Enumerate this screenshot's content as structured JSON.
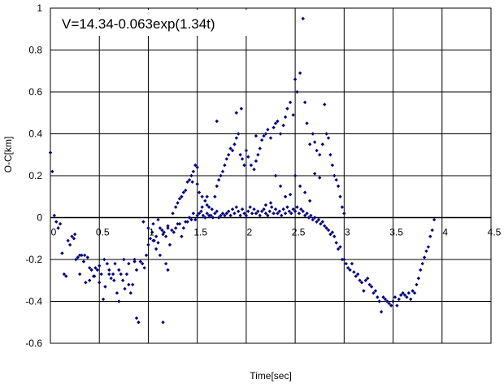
{
  "chart_data": {
    "type": "scatter",
    "annotation": "V=14.34-0.063exp(1.34t)",
    "xlabel": "Time[sec]",
    "ylabel": "O-C[km]",
    "xlim": [
      0,
      4.5
    ],
    "ylim": [
      -0.6,
      1.0
    ],
    "xticks": [
      0,
      0.5,
      1,
      1.5,
      2,
      2.5,
      3,
      3.5,
      4,
      4.5
    ],
    "xtick_labels": [
      "0",
      "0.5",
      "1",
      "1.5",
      "2",
      "2.5",
      "3",
      "3.5",
      "4",
      "4.5"
    ],
    "yticks": [
      -0.6,
      -0.4,
      -0.2,
      0,
      0.2,
      0.4,
      0.6,
      0.8,
      1
    ],
    "ytick_labels": [
      "-0.6",
      "-0.4",
      "-0.2",
      "0",
      "0.2",
      "0.4",
      "0.6",
      "0.8",
      "1"
    ],
    "grid": true,
    "marker_color": "#000080",
    "points": [
      [
        0.0,
        0.31
      ],
      [
        0.02,
        0.22
      ],
      [
        0.04,
        0.01
      ],
      [
        0.06,
        -0.02
      ],
      [
        0.08,
        -0.05
      ],
      [
        0.1,
        -0.03
      ],
      [
        0.12,
        -0.17
      ],
      [
        0.14,
        -0.27
      ],
      [
        0.16,
        -0.28
      ],
      [
        0.18,
        -0.11
      ],
      [
        0.2,
        -0.13
      ],
      [
        0.22,
        -0.09
      ],
      [
        0.24,
        -0.1
      ],
      [
        0.26,
        -0.2
      ],
      [
        0.28,
        -0.19
      ],
      [
        0.3,
        -0.18
      ],
      [
        0.32,
        -0.18
      ],
      [
        0.34,
        -0.21
      ],
      [
        0.36,
        -0.31
      ],
      [
        0.38,
        -0.19
      ],
      [
        0.4,
        -0.24
      ],
      [
        0.42,
        -0.25
      ],
      [
        0.44,
        -0.28
      ],
      [
        0.46,
        -0.24
      ],
      [
        0.48,
        -0.25
      ],
      [
        0.5,
        -0.31
      ],
      [
        0.52,
        -0.27
      ],
      [
        0.54,
        -0.39
      ],
      [
        0.56,
        -0.33
      ],
      [
        0.58,
        -0.22
      ],
      [
        0.6,
        -0.25
      ],
      [
        0.62,
        -0.29
      ],
      [
        0.64,
        -0.27
      ],
      [
        0.66,
        -0.22
      ],
      [
        0.68,
        -0.36
      ],
      [
        0.7,
        -0.4
      ],
      [
        0.72,
        -0.27
      ],
      [
        0.74,
        -0.3
      ],
      [
        0.76,
        -0.34
      ],
      [
        0.78,
        -0.27
      ],
      [
        0.8,
        -0.32
      ],
      [
        0.82,
        -0.36
      ],
      [
        0.84,
        -0.32
      ],
      [
        0.86,
        -0.21
      ],
      [
        0.88,
        -0.25
      ],
      [
        0.9,
        -0.5
      ],
      [
        0.92,
        -0.21
      ],
      [
        0.94,
        -0.22
      ],
      [
        0.96,
        -0.24
      ],
      [
        0.98,
        -0.18
      ],
      [
        1.0,
        -0.13
      ],
      [
        1.02,
        -0.1
      ],
      [
        1.04,
        -0.07
      ],
      [
        1.06,
        -0.11
      ],
      [
        1.08,
        -0.09
      ],
      [
        1.1,
        -0.12
      ],
      [
        1.12,
        -0.05
      ],
      [
        1.14,
        -0.06
      ],
      [
        1.16,
        -0.07
      ],
      [
        1.18,
        -0.09
      ],
      [
        1.2,
        -0.04
      ],
      [
        1.22,
        -0.13
      ],
      [
        1.24,
        -0.06
      ],
      [
        1.26,
        -0.07
      ],
      [
        1.28,
        -0.05
      ],
      [
        1.3,
        -0.03
      ],
      [
        1.32,
        -0.03
      ],
      [
        1.34,
        -0.09
      ],
      [
        1.36,
        -0.05
      ],
      [
        1.38,
        -0.02
      ],
      [
        1.4,
        -0.02
      ],
      [
        1.42,
        0.0
      ],
      [
        1.44,
        -0.01
      ],
      [
        1.46,
        0.02
      ],
      [
        1.48,
        -0.01
      ],
      [
        1.5,
        0.01
      ],
      [
        1.52,
        0.02
      ],
      [
        1.54,
        0.03
      ],
      [
        1.56,
        0.01
      ],
      [
        1.58,
        0.0
      ],
      [
        1.6,
        0.02
      ],
      [
        1.62,
        0.01
      ],
      [
        1.64,
        0.01
      ],
      [
        1.66,
        0.0
      ],
      [
        1.68,
        0.02
      ],
      [
        1.7,
        0.03
      ],
      [
        1.72,
        0.0
      ],
      [
        1.74,
        0.01
      ],
      [
        1.76,
        0.02
      ],
      [
        1.78,
        0.01
      ],
      [
        1.8,
        0.02
      ],
      [
        1.82,
        0.03
      ],
      [
        1.84,
        0.01
      ],
      [
        1.86,
        0.04
      ],
      [
        1.88,
        0.02
      ],
      [
        1.9,
        0.05
      ],
      [
        1.92,
        0.03
      ],
      [
        1.94,
        0.01
      ],
      [
        1.96,
        0.04
      ],
      [
        1.98,
        0.02
      ],
      [
        2.0,
        0.01
      ],
      [
        2.02,
        0.03
      ],
      [
        2.04,
        0.05
      ],
      [
        2.06,
        0.02
      ],
      [
        2.08,
        0.04
      ],
      [
        2.1,
        0.02
      ],
      [
        2.12,
        0.03
      ],
      [
        2.14,
        0.01
      ],
      [
        2.16,
        0.03
      ],
      [
        2.18,
        0.04
      ],
      [
        2.2,
        0.02
      ],
      [
        2.22,
        0.01
      ],
      [
        2.24,
        0.03
      ],
      [
        2.26,
        0.05
      ],
      [
        2.28,
        0.02
      ],
      [
        2.3,
        0.04
      ],
      [
        2.32,
        0.02
      ],
      [
        2.34,
        0.03
      ],
      [
        2.36,
        0.01
      ],
      [
        2.38,
        0.04
      ],
      [
        2.4,
        0.02
      ],
      [
        2.42,
        0.05
      ],
      [
        2.44,
        0.03
      ],
      [
        2.46,
        0.02
      ],
      [
        2.48,
        0.04
      ],
      [
        2.5,
        0.03
      ],
      [
        2.52,
        0.05
      ],
      [
        2.54,
        0.02
      ],
      [
        2.56,
        0.04
      ],
      [
        2.58,
        0.03
      ],
      [
        2.6,
        0.01
      ],
      [
        2.62,
        0.02
      ],
      [
        2.64,
        0.0
      ],
      [
        2.66,
        0.01
      ],
      [
        2.68,
        -0.01
      ],
      [
        2.7,
        0.0
      ],
      [
        2.72,
        -0.02
      ],
      [
        2.74,
        -0.01
      ],
      [
        2.76,
        -0.03
      ],
      [
        2.78,
        -0.02
      ],
      [
        2.8,
        -0.04
      ],
      [
        2.82,
        -0.05
      ],
      [
        2.84,
        -0.06
      ],
      [
        2.86,
        -0.08
      ],
      [
        2.88,
        -0.07
      ],
      [
        2.9,
        -0.09
      ],
      [
        2.92,
        -0.12
      ],
      [
        2.94,
        -0.15
      ],
      [
        2.96,
        -0.14
      ],
      [
        2.98,
        -0.2
      ],
      [
        3.0,
        -0.2
      ],
      [
        3.02,
        -0.22
      ],
      [
        3.04,
        -0.24
      ],
      [
        3.06,
        -0.25
      ],
      [
        3.08,
        -0.22
      ],
      [
        3.1,
        -0.26
      ],
      [
        3.12,
        -0.28
      ],
      [
        3.14,
        -0.27
      ],
      [
        3.16,
        -0.3
      ],
      [
        3.18,
        -0.31
      ],
      [
        3.2,
        -0.35
      ],
      [
        3.22,
        -0.3
      ],
      [
        3.24,
        -0.29
      ],
      [
        3.26,
        -0.32
      ],
      [
        3.28,
        -0.33
      ],
      [
        3.3,
        -0.36
      ],
      [
        3.32,
        -0.35
      ],
      [
        3.34,
        -0.38
      ],
      [
        3.36,
        -0.4
      ],
      [
        3.38,
        -0.45
      ],
      [
        3.4,
        -0.38
      ],
      [
        3.42,
        -0.39
      ],
      [
        3.44,
        -0.4
      ],
      [
        3.46,
        -0.41
      ],
      [
        3.48,
        -0.42
      ],
      [
        3.5,
        -0.4
      ],
      [
        3.52,
        -0.38
      ],
      [
        3.54,
        -0.42
      ],
      [
        3.56,
        -0.39
      ],
      [
        3.58,
        -0.37
      ],
      [
        3.6,
        -0.36
      ],
      [
        3.62,
        -0.37
      ],
      [
        3.64,
        -0.38
      ],
      [
        3.66,
        -0.36
      ],
      [
        3.68,
        -0.39
      ],
      [
        3.7,
        -0.35
      ],
      [
        3.72,
        -0.36
      ],
      [
        3.74,
        -0.32
      ],
      [
        3.76,
        -0.29
      ],
      [
        3.78,
        -0.25
      ],
      [
        3.8,
        -0.22
      ],
      [
        3.82,
        -0.19
      ],
      [
        3.84,
        -0.16
      ],
      [
        3.86,
        -0.14
      ],
      [
        3.88,
        -0.09
      ],
      [
        3.9,
        -0.06
      ],
      [
        3.92,
        -0.01
      ],
      [
        0.95,
        -0.02
      ],
      [
        1.0,
        -0.05
      ],
      [
        1.05,
        -0.03
      ],
      [
        1.1,
        -0.01
      ],
      [
        1.15,
        -0.08
      ],
      [
        1.2,
        -0.05
      ],
      [
        1.25,
        0.02
      ],
      [
        1.28,
        0.05
      ],
      [
        1.3,
        0.07
      ],
      [
        1.32,
        0.09
      ],
      [
        1.34,
        0.1
      ],
      [
        1.36,
        0.12
      ],
      [
        1.38,
        0.13
      ],
      [
        1.4,
        0.17
      ],
      [
        1.42,
        0.18
      ],
      [
        1.44,
        0.2
      ],
      [
        1.46,
        0.22
      ],
      [
        1.48,
        0.25
      ],
      [
        1.5,
        0.16
      ],
      [
        1.52,
        0.12
      ],
      [
        1.55,
        0.1
      ],
      [
        1.58,
        0.08
      ],
      [
        1.6,
        0.06
      ],
      [
        1.62,
        0.05
      ],
      [
        1.65,
        0.04
      ],
      [
        1.68,
        0.1
      ],
      [
        1.7,
        0.15
      ],
      [
        1.72,
        0.18
      ],
      [
        1.74,
        0.2
      ],
      [
        1.76,
        0.22
      ],
      [
        1.78,
        0.25
      ],
      [
        1.8,
        0.28
      ],
      [
        1.82,
        0.3
      ],
      [
        1.84,
        0.33
      ],
      [
        1.86,
        0.32
      ],
      [
        1.88,
        0.35
      ],
      [
        1.9,
        0.38
      ],
      [
        1.92,
        0.4
      ],
      [
        1.94,
        0.3
      ],
      [
        1.96,
        0.28
      ],
      [
        1.98,
        0.25
      ],
      [
        2.0,
        0.32
      ],
      [
        2.02,
        0.29
      ],
      [
        2.05,
        0.25
      ],
      [
        2.08,
        0.23
      ],
      [
        2.1,
        0.27
      ],
      [
        2.12,
        0.3
      ],
      [
        2.14,
        0.33
      ],
      [
        2.16,
        0.37
      ],
      [
        2.18,
        0.39
      ],
      [
        2.2,
        0.4
      ],
      [
        2.22,
        0.42
      ],
      [
        2.25,
        0.38
      ],
      [
        2.28,
        0.43
      ],
      [
        2.3,
        0.45
      ],
      [
        2.32,
        0.46
      ],
      [
        2.35,
        0.4
      ],
      [
        2.38,
        0.44
      ],
      [
        2.4,
        0.48
      ],
      [
        2.42,
        0.52
      ],
      [
        2.45,
        0.55
      ],
      [
        2.48,
        0.49
      ],
      [
        2.5,
        0.66
      ],
      [
        2.52,
        0.6
      ],
      [
        2.55,
        0.69
      ],
      [
        2.58,
        0.95
      ],
      [
        2.6,
        0.55
      ],
      [
        2.62,
        0.45
      ],
      [
        2.65,
        0.35
      ],
      [
        2.68,
        0.4
      ],
      [
        2.7,
        0.36
      ],
      [
        2.72,
        0.32
      ],
      [
        2.75,
        0.3
      ],
      [
        2.78,
        0.35
      ],
      [
        2.8,
        0.54
      ],
      [
        2.82,
        0.4
      ],
      [
        2.84,
        0.38
      ],
      [
        2.86,
        0.3
      ],
      [
        2.88,
        0.25
      ],
      [
        2.9,
        0.2
      ],
      [
        2.92,
        0.18
      ],
      [
        2.94,
        0.15
      ],
      [
        2.96,
        0.1
      ],
      [
        2.98,
        0.05
      ],
      [
        3.0,
        0.02
      ],
      [
        1.7,
        0.46
      ],
      [
        1.9,
        0.5
      ],
      [
        1.95,
        0.52
      ],
      [
        2.1,
        0.39
      ],
      [
        2.3,
        0.2
      ],
      [
        2.35,
        0.15
      ],
      [
        2.4,
        0.1
      ],
      [
        2.45,
        0.11
      ],
      [
        2.5,
        0.2
      ],
      [
        2.55,
        0.15
      ],
      [
        2.6,
        0.12
      ],
      [
        2.65,
        0.08
      ],
      [
        2.7,
        0.21
      ],
      [
        2.75,
        0.19
      ],
      [
        1.6,
        0.1
      ],
      [
        1.55,
        0.05
      ],
      [
        1.5,
        0.24
      ],
      [
        1.45,
        0.17
      ],
      [
        2.2,
        0.06
      ],
      [
        2.25,
        0.07
      ],
      [
        1.05,
        -0.11
      ],
      [
        1.08,
        -0.15
      ],
      [
        1.12,
        -0.18
      ],
      [
        1.18,
        -0.22
      ],
      [
        1.2,
        -0.25
      ],
      [
        1.15,
        -0.5
      ],
      [
        0.88,
        -0.48
      ],
      [
        0.86,
        -0.2
      ],
      [
        0.8,
        -0.22
      ],
      [
        0.75,
        -0.2
      ],
      [
        0.7,
        -0.25
      ],
      [
        0.65,
        -0.3
      ],
      [
        0.6,
        -0.27
      ],
      [
        0.55,
        -0.2
      ],
      [
        0.5,
        -0.23
      ],
      [
        0.45,
        -0.28
      ],
      [
        0.4,
        -0.3
      ],
      [
        0.35,
        -0.18
      ],
      [
        0.3,
        -0.27
      ],
      [
        0.25,
        -0.08
      ]
    ]
  }
}
